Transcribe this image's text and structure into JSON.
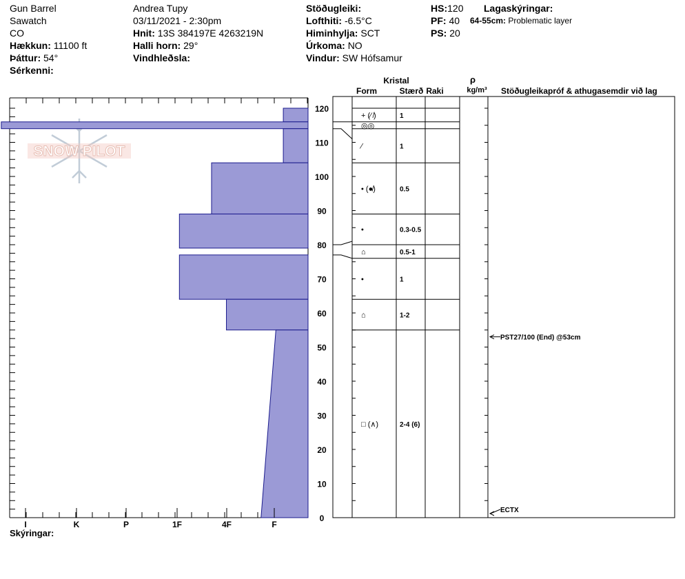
{
  "header": {
    "site": "Gun Barrel",
    "range": "Sawatch",
    "state": "CO",
    "elevation_label": "Hækkun:",
    "elevation": "11100 ft",
    "aspect_label": "Þáttur:",
    "aspect": "54°",
    "features_label": "Sérkenni:",
    "observer": "Andrea Tupy",
    "datetime": "03/11/2021 - 2:30pm",
    "coords_label": "Hnit:",
    "coords": "13S 384197E 4263219N",
    "slope_label": "Halli horn:",
    "slope": "29°",
    "wind_loading_label": "Vindhleðsla:",
    "stability_label": "Stöðugleiki:",
    "air_temp_label": "Lofthiti:",
    "air_temp": "-6.5°C",
    "sky_label": "Himinhylja:",
    "sky": "SCT",
    "precip_label": "Úrkoma:",
    "precip": "NO",
    "wind_label": "Vindur:",
    "wind": "SW Hófsamur",
    "hs_label": "HS:",
    "hs": "120",
    "pf_label": "PF:",
    "pf": "40",
    "ps_label": "PS:",
    "ps": "20",
    "layer_notes_label": "Lagaskýringar:",
    "layer_note_range": "64-55cm:",
    "layer_note_text": "Problematic layer",
    "footer_label": "Skýringar:"
  },
  "logo": {
    "text": "SNOW PILOT",
    "color": "#e8a090"
  },
  "columns": {
    "crystal": "Kristal",
    "form": "Form",
    "size": "Stærð",
    "moisture": "Raki",
    "rho": "ρ",
    "density_unit": "kg/m³",
    "stability": "Stöðugleikapróf & athugasemdir við lag"
  },
  "colors": {
    "bar": "#9b9ad6",
    "bar_stroke": "#1a1a8c",
    "grid": "#000000"
  },
  "chart_data": {
    "type": "bar",
    "orientation": "horizontal",
    "title": "",
    "ylabel": "",
    "ylim": [
      0,
      120
    ],
    "yticks": [
      0,
      10,
      20,
      30,
      40,
      50,
      60,
      70,
      80,
      90,
      100,
      110,
      120
    ],
    "hardness_scale": [
      "I",
      "K",
      "P",
      "1F",
      "4F",
      "F"
    ],
    "hardness_layers": [
      {
        "top": 120,
        "bottom": 116,
        "hardness": 0.5
      },
      {
        "top": 116,
        "bottom": 114,
        "hardness": 6.2
      },
      {
        "top": 114,
        "bottom": 104,
        "hardness": 0.5
      },
      {
        "top": 104,
        "bottom": 89,
        "hardness": 1.95
      },
      {
        "top": 89,
        "bottom": 79,
        "hardness": 2.6
      },
      {
        "top": 79,
        "bottom": 77,
        "hardness": 0
      },
      {
        "top": 77,
        "bottom": 64,
        "hardness": 2.6
      },
      {
        "top": 64,
        "bottom": 55,
        "hardness": 1.65
      },
      {
        "top": 55,
        "bottom": 0,
        "hardness_top": 0.65,
        "hardness_bottom": 0.95
      }
    ],
    "layer_rows": [
      {
        "top": 120,
        "bottom": 116,
        "form": "+ (⁄ ̸)",
        "size": "1"
      },
      {
        "top": 116,
        "bottom": 114,
        "form": "◎◎",
        "size": ""
      },
      {
        "top": 114,
        "bottom": 104,
        "form": "⁄",
        "size": "1"
      },
      {
        "top": 104,
        "bottom": 89,
        "form": "• (●̸)",
        "size": "0.5"
      },
      {
        "top": 89,
        "bottom": 80,
        "form": "•",
        "size": "0.3-0.5"
      },
      {
        "top": 80,
        "bottom": 76,
        "form": "⌂",
        "size": "0.5-1"
      },
      {
        "top": 76,
        "bottom": 64,
        "form": "•",
        "size": "1"
      },
      {
        "top": 64,
        "bottom": 55,
        "form": "⌂",
        "size": "1-2"
      },
      {
        "top": 55,
        "bottom": 0,
        "form": "□ (∧)",
        "size": "2-4 (6)"
      }
    ],
    "tests": [
      {
        "depth": 53,
        "text": "PST27/100 (End) @53cm"
      },
      {
        "depth": 0,
        "text": "ECTX"
      }
    ]
  }
}
